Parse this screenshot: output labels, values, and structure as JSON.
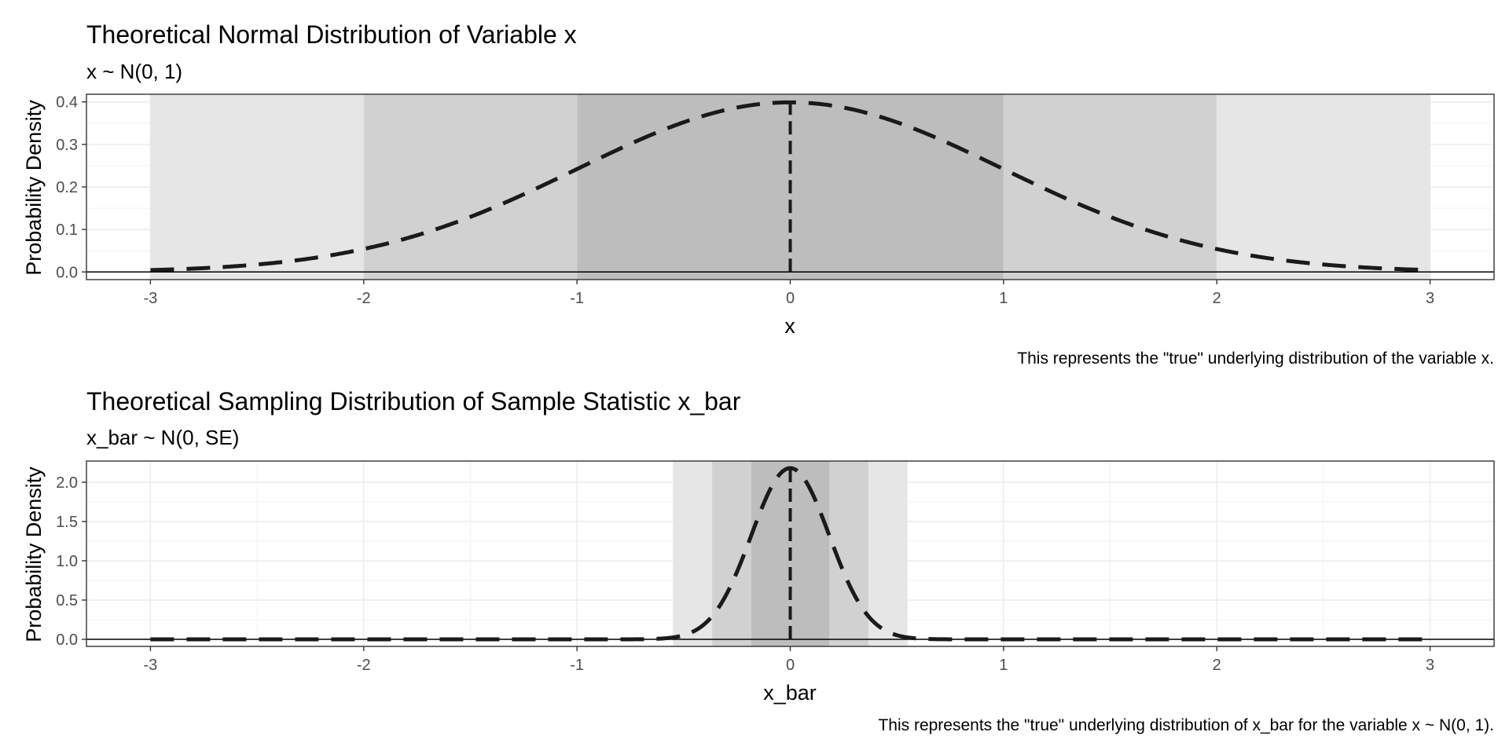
{
  "chart_data": [
    {
      "type": "line",
      "title": "Theoretical Normal Distribution of Variable x",
      "subtitle": "x ~ N(0, 1)",
      "xlabel": "x",
      "ylabel": "Probability Density",
      "caption": "This represents the \"true\" underlying distribution of the variable x.",
      "xlim": [
        -3.3,
        3.3
      ],
      "ylim": [
        -0.018,
        0.418
      ],
      "x_ticks": [
        -3,
        -2,
        -1,
        0,
        1,
        2,
        3
      ],
      "x_tick_labels": [
        "-3",
        "-2",
        "-1",
        "0",
        "1",
        "2",
        "3"
      ],
      "y_ticks": [
        0,
        0.1,
        0.2,
        0.3,
        0.4
      ],
      "y_tick_labels": [
        "0.0",
        "0.1",
        "0.2",
        "0.3",
        "0.4"
      ],
      "distribution": {
        "mean": 0,
        "sd": 1,
        "x_range": [
          -3,
          3
        ]
      },
      "shaded_bands": [
        {
          "from": -3,
          "to": 3,
          "color": "#e6e6e6"
        },
        {
          "from": -2,
          "to": 2,
          "color": "#d1d1d1"
        },
        {
          "from": -1,
          "to": 1,
          "color": "#bdbdbd"
        }
      ],
      "mean_line": {
        "x": 0
      },
      "line_style": "dashed",
      "line_color": "#1a1a1a",
      "grid": true
    },
    {
      "type": "line",
      "title": "Theoretical Sampling Distribution of Sample Statistic x_bar",
      "subtitle": "x_bar ~ N(0, SE)",
      "xlabel": "x_bar",
      "ylabel": "Probability Density",
      "caption": "This represents the \"true\" underlying distribution of x_bar for the variable x ~ N(0, 1).",
      "xlim": [
        -3.3,
        3.3
      ],
      "ylim": [
        -0.09,
        2.27
      ],
      "x_ticks": [
        -3,
        -2,
        -1,
        0,
        1,
        2,
        3
      ],
      "x_tick_labels": [
        "-3",
        "-2",
        "-1",
        "0",
        "1",
        "2",
        "3"
      ],
      "y_ticks": [
        0,
        0.5,
        1.0,
        1.5,
        2.0
      ],
      "y_tick_labels": [
        "0.0",
        "0.5",
        "1.0",
        "1.5",
        "2.0"
      ],
      "distribution": {
        "mean": 0,
        "sd": 0.183,
        "x_range": [
          -3,
          3
        ]
      },
      "shaded_bands": [
        {
          "from": -0.55,
          "to": 0.55,
          "color": "#e6e6e6"
        },
        {
          "from": -0.366,
          "to": 0.366,
          "color": "#d1d1d1"
        },
        {
          "from": -0.183,
          "to": 0.183,
          "color": "#bdbdbd"
        }
      ],
      "mean_line": {
        "x": 0
      },
      "line_style": "dashed",
      "line_color": "#1a1a1a",
      "grid": true
    }
  ]
}
